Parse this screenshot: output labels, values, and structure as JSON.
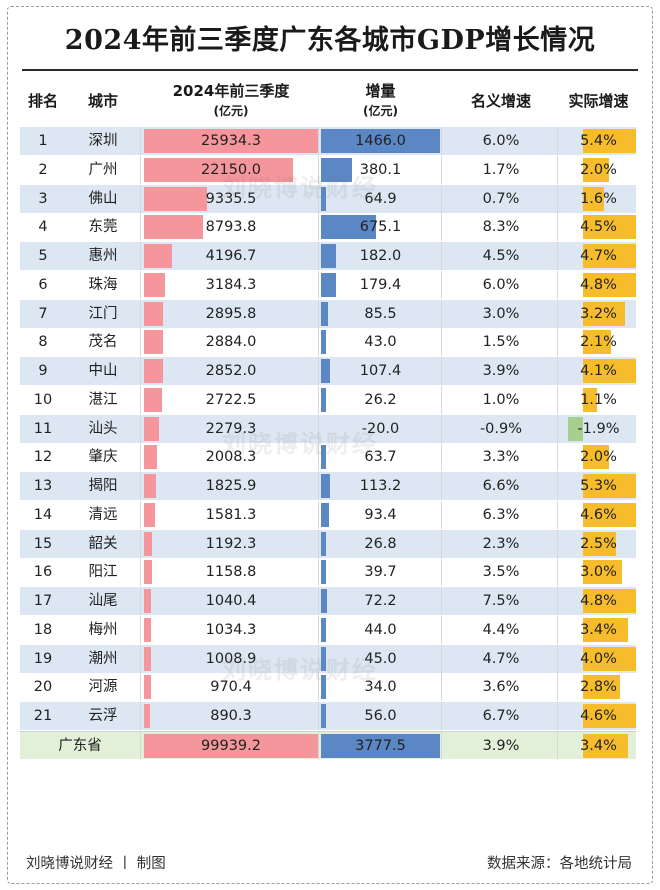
{
  "title": "2024年前三季度广东各城市GDP增长情况",
  "headers": {
    "rank": "排名",
    "city": "城市",
    "gdp_line1": "2024年前三季度",
    "gdp_line2": "(亿元)",
    "increase_line1": "增量",
    "increase_line2": "(亿元)",
    "nominal": "名义增速",
    "real": "实际增速"
  },
  "watermark": "刘晓博说财经",
  "footer": {
    "author": "刘晓博说财经 丨 制图",
    "source": "数据来源：各地统计局"
  },
  "colors": {
    "gdp_bar": "#f4969b",
    "increase_bar": "#5b87c4",
    "real_positive_bar": "#f6bc2c",
    "real_negative_bar": "#a5cf8e",
    "row_alt": "#dce7f3",
    "total_row": "#e2efd9"
  },
  "chart_data": {
    "type": "table",
    "title": "2024年前三季度广东各城市GDP增长情况",
    "columns": [
      "排名",
      "城市",
      "2024年前三季度(亿元)",
      "增量(亿元)",
      "名义增速",
      "实际增速"
    ],
    "rows": [
      {
        "rank": "1",
        "city": "深圳",
        "gdp": "25934.3",
        "increase": "1466.0",
        "nominal": "6.0%",
        "real": "5.4%"
      },
      {
        "rank": "2",
        "city": "广州",
        "gdp": "22150.0",
        "increase": "380.1",
        "nominal": "1.7%",
        "real": "2.0%"
      },
      {
        "rank": "3",
        "city": "佛山",
        "gdp": "9335.5",
        "increase": "64.9",
        "nominal": "0.7%",
        "real": "1.6%"
      },
      {
        "rank": "4",
        "city": "东莞",
        "gdp": "8793.8",
        "increase": "675.1",
        "nominal": "8.3%",
        "real": "4.5%"
      },
      {
        "rank": "5",
        "city": "惠州",
        "gdp": "4196.7",
        "increase": "182.0",
        "nominal": "4.5%",
        "real": "4.7%"
      },
      {
        "rank": "6",
        "city": "珠海",
        "gdp": "3184.3",
        "increase": "179.4",
        "nominal": "6.0%",
        "real": "4.8%"
      },
      {
        "rank": "7",
        "city": "江门",
        "gdp": "2895.8",
        "increase": "85.5",
        "nominal": "3.0%",
        "real": "3.2%"
      },
      {
        "rank": "8",
        "city": "茂名",
        "gdp": "2884.0",
        "increase": "43.0",
        "nominal": "1.5%",
        "real": "2.1%"
      },
      {
        "rank": "9",
        "city": "中山",
        "gdp": "2852.0",
        "increase": "107.4",
        "nominal": "3.9%",
        "real": "4.1%"
      },
      {
        "rank": "10",
        "city": "湛江",
        "gdp": "2722.5",
        "increase": "26.2",
        "nominal": "1.0%",
        "real": "1.1%"
      },
      {
        "rank": "11",
        "city": "汕头",
        "gdp": "2279.3",
        "increase": "-20.0",
        "nominal": "-0.9%",
        "real": "-1.9%"
      },
      {
        "rank": "12",
        "city": "肇庆",
        "gdp": "2008.3",
        "increase": "63.7",
        "nominal": "3.3%",
        "real": "2.0%"
      },
      {
        "rank": "13",
        "city": "揭阳",
        "gdp": "1825.9",
        "increase": "113.2",
        "nominal": "6.6%",
        "real": "5.3%"
      },
      {
        "rank": "14",
        "city": "清远",
        "gdp": "1581.3",
        "increase": "93.4",
        "nominal": "6.3%",
        "real": "4.6%"
      },
      {
        "rank": "15",
        "city": "韶关",
        "gdp": "1192.3",
        "increase": "26.8",
        "nominal": "2.3%",
        "real": "2.5%"
      },
      {
        "rank": "16",
        "city": "阳江",
        "gdp": "1158.8",
        "increase": "39.7",
        "nominal": "3.5%",
        "real": "3.0%"
      },
      {
        "rank": "17",
        "city": "汕尾",
        "gdp": "1040.4",
        "increase": "72.2",
        "nominal": "7.5%",
        "real": "4.8%"
      },
      {
        "rank": "18",
        "city": "梅州",
        "gdp": "1034.3",
        "increase": "44.0",
        "nominal": "4.4%",
        "real": "3.4%"
      },
      {
        "rank": "19",
        "city": "潮州",
        "gdp": "1008.9",
        "increase": "45.0",
        "nominal": "4.7%",
        "real": "4.0%"
      },
      {
        "rank": "20",
        "city": "河源",
        "gdp": "970.4",
        "increase": "34.0",
        "nominal": "3.6%",
        "real": "2.8%"
      },
      {
        "rank": "21",
        "city": "云浮",
        "gdp": "890.3",
        "increase": "56.0",
        "nominal": "6.7%",
        "real": "4.6%"
      }
    ],
    "total": {
      "city": "广东省",
      "gdp": "99939.2",
      "increase": "3777.5",
      "nominal": "3.9%",
      "real": "3.4%"
    }
  }
}
